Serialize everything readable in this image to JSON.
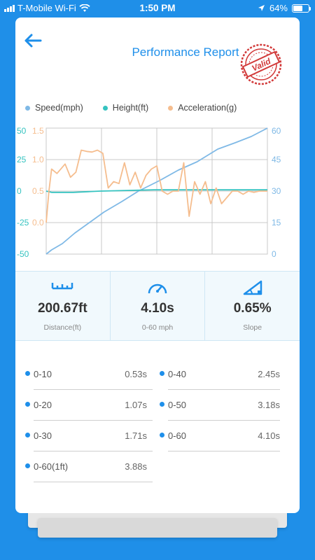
{
  "status_bar": {
    "carrier": "T-Mobile Wi-Fi",
    "time": "1:50 PM",
    "battery": "64%",
    "battery_level": 0.64,
    "icons": [
      "signal-icon",
      "wifi-icon",
      "location-arrow-icon",
      "battery-icon"
    ]
  },
  "header": {
    "title": "Performance Report",
    "stamp_text": "Valid",
    "back_icon": "back-arrow-icon"
  },
  "colors": {
    "accent": "#1e8fea",
    "speed": "#7fb9e6",
    "height": "#35c3c0",
    "acceleration": "#f5bd8e",
    "stamp": "#d23a3a"
  },
  "chart_data": {
    "type": "line",
    "legend_position": "top",
    "grid": true,
    "x_range": [
      0,
      4.1
    ],
    "axes": {
      "height_left": {
        "ticks": [
          "50",
          "25",
          "0",
          "-25",
          "-50"
        ],
        "range": [
          -50,
          50
        ],
        "color": "#35c3c0"
      },
      "acceleration_left": {
        "ticks": [
          "1.5",
          "1.0",
          "0.5",
          "0.0"
        ],
        "range": [
          -0.5,
          1.5
        ],
        "color": "#f5bd8e"
      },
      "speed_right": {
        "ticks": [
          "60",
          "45",
          "30",
          "15",
          "0"
        ],
        "range": [
          0,
          60
        ],
        "color": "#7fb9e6"
      }
    },
    "series": [
      {
        "name": "Speed(mph)",
        "axis": "speed_right",
        "x": [
          0,
          0.1,
          0.3,
          0.53,
          0.8,
          1.07,
          1.4,
          1.71,
          2.1,
          2.45,
          2.8,
          3.18,
          3.5,
          3.8,
          4.1
        ],
        "y": [
          0,
          2,
          5,
          10,
          15,
          20,
          25,
          30,
          35,
          40,
          44,
          50,
          53,
          56,
          60
        ]
      },
      {
        "name": "Height(ft)",
        "axis": "height_left",
        "x": [
          0,
          0.1,
          0.5,
          1.0,
          1.5,
          2.0,
          2.5,
          3.0,
          3.5,
          4.1
        ],
        "y": [
          0,
          -1,
          -1,
          0,
          0.5,
          1,
          1,
          1,
          1,
          1
        ]
      },
      {
        "name": "Acceleration(g)",
        "axis": "acceleration_left",
        "x": [
          0,
          0.05,
          0.1,
          0.2,
          0.35,
          0.45,
          0.55,
          0.65,
          0.75,
          0.85,
          0.95,
          1.05,
          1.15,
          1.25,
          1.35,
          1.45,
          1.55,
          1.65,
          1.75,
          1.85,
          1.95,
          2.05,
          2.15,
          2.25,
          2.35,
          2.45,
          2.55,
          2.65,
          2.75,
          2.85,
          2.95,
          3.05,
          3.15,
          3.25,
          3.35,
          3.45,
          3.55,
          3.65,
          3.75,
          3.85,
          3.95,
          4.1
        ],
        "y": [
          0.0,
          0.5,
          0.85,
          0.78,
          0.93,
          0.72,
          0.8,
          1.15,
          1.13,
          1.12,
          1.15,
          1.1,
          0.55,
          0.65,
          0.62,
          0.95,
          0.6,
          0.8,
          0.55,
          0.75,
          0.85,
          0.9,
          0.5,
          0.45,
          0.5,
          0.5,
          0.95,
          0.1,
          0.65,
          0.45,
          0.65,
          0.3,
          0.55,
          0.3,
          0.4,
          0.5,
          0.5,
          0.45,
          0.5,
          0.48,
          0.5,
          0.5
        ]
      }
    ]
  },
  "stats": [
    {
      "icon": "ruler-icon",
      "value": "200.67ft",
      "label": "Distance(ft)"
    },
    {
      "icon": "speedometer-icon",
      "value": "4.10s",
      "label": "0-60 mph"
    },
    {
      "icon": "slope-icon",
      "value": "0.65%",
      "label": "Slope"
    }
  ],
  "splits": [
    {
      "label": "0-10",
      "time": "0.53s"
    },
    {
      "label": "0-40",
      "time": "2.45s"
    },
    {
      "label": "0-20",
      "time": "1.07s"
    },
    {
      "label": "0-50",
      "time": "3.18s"
    },
    {
      "label": "0-30",
      "time": "1.71s"
    },
    {
      "label": "0-60",
      "time": "4.10s"
    },
    {
      "label": "0-60(1ft)",
      "time": "3.88s"
    }
  ]
}
